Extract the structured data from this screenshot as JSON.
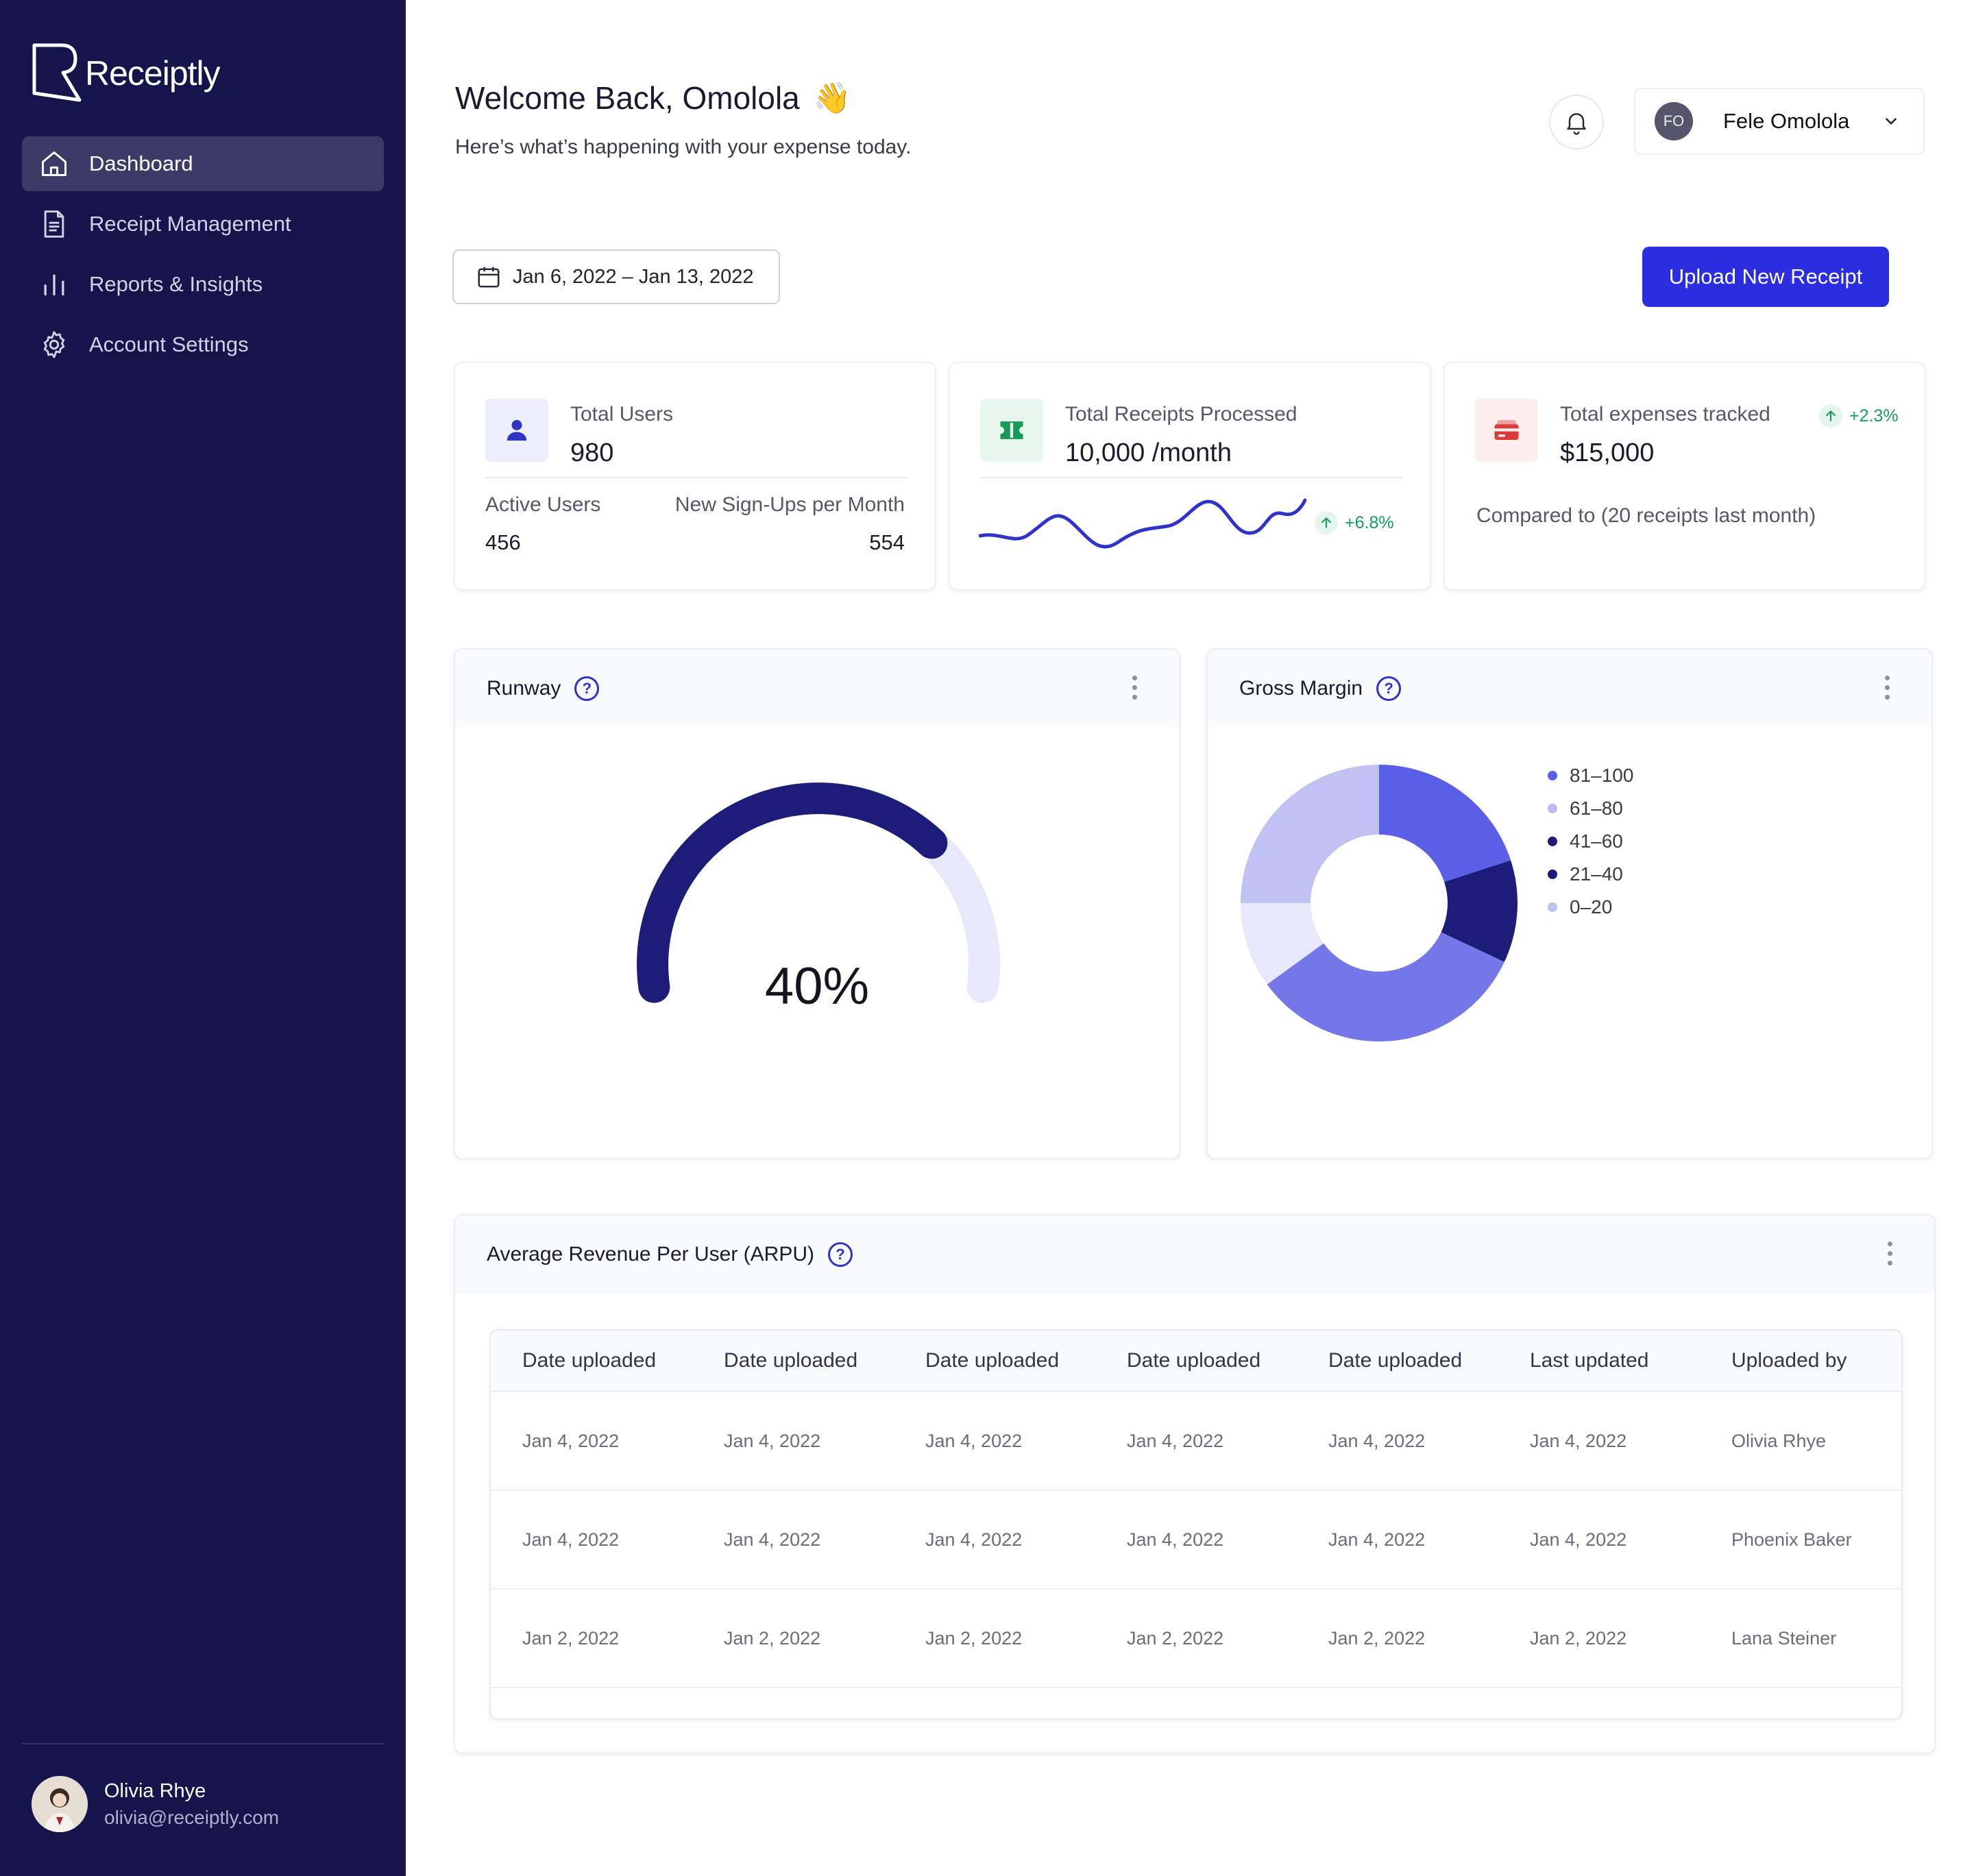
{
  "app": {
    "name": "Receiptly"
  },
  "sidebar": {
    "items": [
      {
        "label": "Dashboard",
        "icon": "home-icon",
        "active": true
      },
      {
        "label": "Receipt Management",
        "icon": "document-icon",
        "active": false
      },
      {
        "label": "Reports & Insights",
        "icon": "bar-chart-icon",
        "active": false
      },
      {
        "label": "Account Settings",
        "icon": "gear-icon",
        "active": false
      }
    ],
    "user": {
      "name": "Olivia Rhye",
      "email": "olivia@receiptly.com"
    }
  },
  "header": {
    "welcome": "Welcome Back, Omolola",
    "wave": "👋",
    "subtitle": "Here’s what’s happening with your expense today.",
    "user_initials": "FO",
    "user_name": "Fele Omolola"
  },
  "toolbar": {
    "date_range": "Jan 6, 2022 – Jan 13, 2022",
    "upload_label": "Upload New Receipt"
  },
  "stats": {
    "users": {
      "title": "Total Users",
      "value": "980",
      "active_label": "Active Users",
      "active_value": "456",
      "signups_label": "New Sign-Ups per Month",
      "signups_value": "554",
      "icon": "user-icon",
      "icon_bg": "#eceefb",
      "icon_color": "#2f33c8"
    },
    "receipts": {
      "title": "Total Receipts Processed",
      "value": "10,000 /month",
      "trend": "+6.8%",
      "icon": "ticket-icon",
      "icon_bg": "#e8f7ee",
      "icon_color": "#179a55"
    },
    "expenses": {
      "title": "Total expenses tracked",
      "value": "$15,000",
      "trend": "+2.3%",
      "note": "Compared to (20 receipts last month)",
      "icon": "credit-card-icon",
      "icon_bg": "#fdeeee",
      "icon_color": "#d93a3a"
    }
  },
  "runway": {
    "title": "Runway",
    "value_label": "40%",
    "percent": 40
  },
  "gross_margin": {
    "title": "Gross Margin",
    "chart_data": {
      "type": "pie",
      "title": "Gross Margin",
      "categories": [
        "81–100",
        "61–80",
        "41–60",
        "21–40",
        "0–20"
      ],
      "values": [
        20,
        12,
        33,
        10,
        25
      ],
      "colors": [
        "#5b5fe8",
        "#b8bbf2",
        "#1c1d78",
        "#1c1d78",
        "#c0c2f3"
      ],
      "slice_colors": [
        "#5b5fe8",
        "#1c1d78",
        "#7577e8",
        "#e8e8fb",
        "#c0c2f3"
      ],
      "legend": "right"
    }
  },
  "arpu": {
    "title": "Average Revenue Per User (ARPU)",
    "columns": [
      "Date uploaded",
      "Date uploaded",
      "Date uploaded",
      "Date uploaded",
      "Date uploaded",
      "Last updated",
      "Uploaded by"
    ],
    "rows": [
      [
        "Jan 4, 2022",
        "Jan 4, 2022",
        "Jan 4, 2022",
        "Jan 4, 2022",
        "Jan 4, 2022",
        "Jan 4, 2022",
        "Olivia Rhye"
      ],
      [
        "Jan 4, 2022",
        "Jan 4, 2022",
        "Jan 4, 2022",
        "Jan 4, 2022",
        "Jan 4, 2022",
        "Jan 4, 2022",
        "Phoenix Baker"
      ],
      [
        "Jan 2, 2022",
        "Jan 2, 2022",
        "Jan 2, 2022",
        "Jan 2, 2022",
        "Jan 2, 2022",
        "Jan 2, 2022",
        "Lana Steiner"
      ]
    ]
  }
}
